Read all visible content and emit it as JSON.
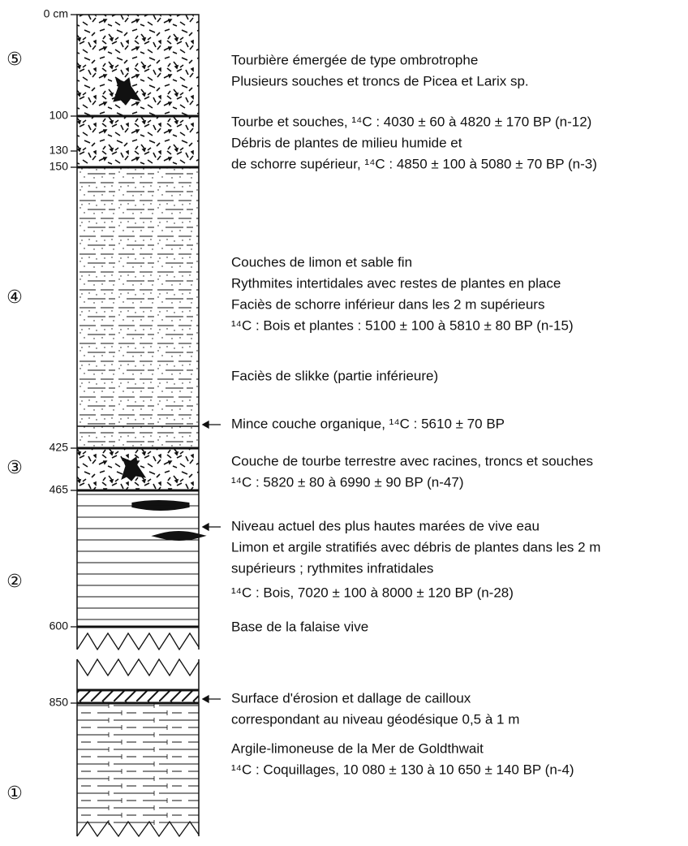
{
  "depth_labels": [
    "0 cm",
    "100",
    "130",
    "150",
    "425",
    "465",
    "600",
    "850"
  ],
  "unit_labels": [
    "⑤",
    "④",
    "③",
    "②",
    "①"
  ],
  "descriptions": [
    "Tourbière émergée de type ombrotrophe",
    "Plusieurs souches et troncs de Picea et Larix sp.",
    "Tourbe et souches, ¹⁴C : 4030 ± 60 à 4820 ± 170 BP (n-12)",
    "Débris de plantes de milieu humide et",
    "de schorre supérieur, ¹⁴C : 4850 ± 100 à 5080 ± 70 BP (n-3)",
    "Couches de limon et sable fin",
    "Rythmites intertidales avec restes de plantes en place",
    "Faciès de schorre inférieur dans les 2 m supérieurs",
    "¹⁴C : Bois et plantes : 5100 ± 100 à 5810 ± 80 BP (n-15)",
    "Faciès de slikke (partie inférieure)",
    "Mince couche organique, ¹⁴C : 5610 ± 70 BP",
    "Couche de tourbe terrestre avec racines, troncs et souches",
    "¹⁴C : 5820 ± 80 à 6990 ± 90 BP (n-47)",
    "Niveau actuel des plus hautes marées de vive eau",
    "Limon et argile stratifiés avec débris de plantes dans les 2 m",
    "supérieurs ; rythmites infratidales",
    "¹⁴C : Bois, 7020 ± 100 à  8000 ± 120 BP (n-28)",
    "Base de la falaise vive",
    "Surface d'érosion et dallage de cailloux",
    "correspondant au niveau géodésique 0,5 à 1 m",
    "Argile-limoneuse de la Mer de Goldthwait",
    "¹⁴C : Coquillages, 10 080 ± 130 à 10 650 ± 140 BP (n-4)"
  ]
}
